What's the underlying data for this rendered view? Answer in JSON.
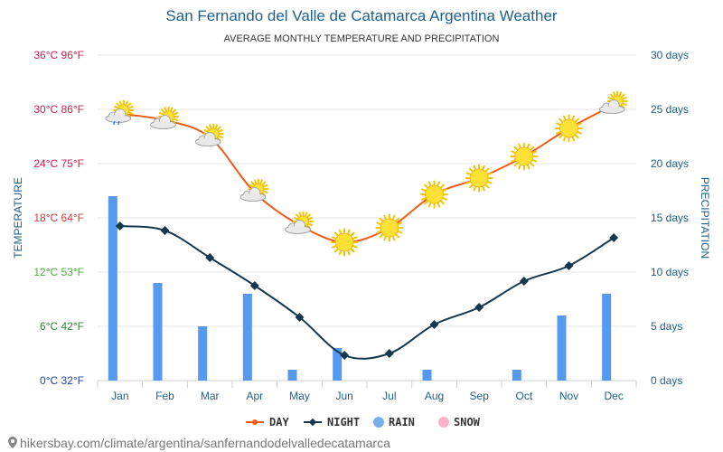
{
  "chart_data": {
    "type": "bar",
    "title": "San Fernando del Valle de Catamarca Argentina Weather",
    "subtitle": "AVERAGE MONTHLY TEMPERATURE AND PRECIPITATION",
    "ylabel_left": "TEMPERATURE",
    "ylabel_right": "PRECIPITATION",
    "categories": [
      "Jan",
      "Feb",
      "Mar",
      "Apr",
      "May",
      "Jun",
      "Jul",
      "Aug",
      "Sep",
      "Oct",
      "Nov",
      "Dec"
    ],
    "ylim_temp_c": [
      0,
      36
    ],
    "ylim_precip_days": [
      0,
      30
    ],
    "left_ticks": [
      {
        "value": 0,
        "label": "0°C 32°F",
        "color": "#1f3fbf"
      },
      {
        "value": 6,
        "label": "6°C 42°F",
        "color": "#2e8b2e"
      },
      {
        "value": 12,
        "label": "12°C 53°F",
        "color": "#4caf3a"
      },
      {
        "value": 18,
        "label": "18°C 64°F",
        "color": "#d63c3c"
      },
      {
        "value": 24,
        "label": "24°C 75°F",
        "color": "#d6204a"
      },
      {
        "value": 30,
        "label": "30°C 86°F",
        "color": "#d6204a"
      },
      {
        "value": 36,
        "label": "36°C 96°F",
        "color": "#d6204a"
      }
    ],
    "right_ticks": [
      {
        "value": 0,
        "label": "0 days"
      },
      {
        "value": 5,
        "label": "5 days"
      },
      {
        "value": 10,
        "label": "10 days"
      },
      {
        "value": 15,
        "label": "15 days"
      },
      {
        "value": 20,
        "label": "20 days"
      },
      {
        "value": 25,
        "label": "25 days"
      },
      {
        "value": 30,
        "label": "30 days"
      }
    ],
    "series": [
      {
        "name": "DAY",
        "color": "#f05a1a",
        "values": [
          29.5,
          28.8,
          26.9,
          20.8,
          17.2,
          15.3,
          16.9,
          20.6,
          22.4,
          24.8,
          27.9,
          30.5
        ]
      },
      {
        "name": "NIGHT",
        "color": "#16384f",
        "values": [
          17.1,
          16.6,
          13.6,
          10.5,
          7.0,
          2.8,
          3.0,
          6.2,
          8.1,
          11.0,
          12.7,
          15.8
        ]
      },
      {
        "name": "RAIN",
        "color": "#5599f0",
        "values": [
          17,
          9,
          5,
          8,
          1,
          3,
          0,
          1,
          0,
          1,
          6,
          8
        ]
      },
      {
        "name": "SNOW",
        "color": "#ffb3c6",
        "values": [
          0,
          0,
          0,
          0,
          0,
          0,
          0,
          0,
          0,
          0,
          0,
          0
        ]
      }
    ],
    "weather_icons": [
      "cloud-sun-rain",
      "cloud-sun",
      "cloud-sun",
      "cloud-sun",
      "cloud-sun",
      "sun",
      "sun",
      "sun",
      "sun",
      "sun",
      "sun",
      "cloud-sun"
    ],
    "legend": [
      "DAY",
      "NIGHT",
      "RAIN",
      "SNOW"
    ],
    "legend_position": "bottom-center",
    "grid": true
  },
  "source": {
    "text": "hikersbay.com/climate/argentina/sanfernandodelvalledecatamarca"
  },
  "colors": {
    "title": "#1f5f8b",
    "axis_right": "#1f5f8b",
    "grid": "#e6e6e6",
    "month_label": "#1f5f8b"
  }
}
